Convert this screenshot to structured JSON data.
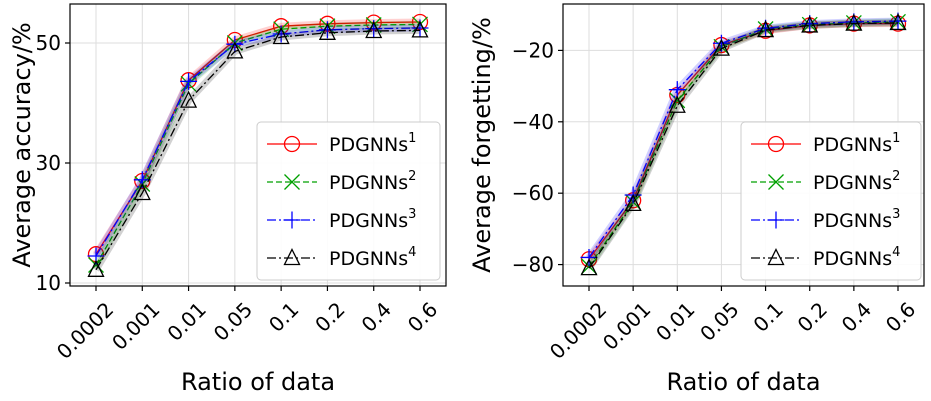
{
  "chart_data": [
    {
      "type": "line",
      "xlabel": "Ratio of data",
      "ylabel": "Average accuracy/%",
      "categories": [
        "0.0002",
        "0.001",
        "0.01",
        "0.05",
        "0.1",
        "0.2",
        "0.4",
        "0.6"
      ],
      "ylim": [
        9.5,
        56.5
      ],
      "yticks": [
        "10",
        "30",
        "50"
      ],
      "grid": true,
      "legend_position": "lower-right",
      "series": [
        {
          "name": "PDGNNs",
          "sup": "1",
          "color": "#ff0000",
          "dash": "solid",
          "marker": "circle",
          "values": [
            14.8,
            27.0,
            43.8,
            50.5,
            52.8,
            53.2,
            53.4,
            53.5
          ]
        },
        {
          "name": "PDGNNs",
          "sup": "2",
          "color": "#00a000",
          "dash": "dashed",
          "marker": "x",
          "values": [
            13.0,
            26.5,
            43.2,
            50.0,
            52.3,
            52.8,
            53.0,
            53.1
          ]
        },
        {
          "name": "PDGNNs",
          "sup": "3",
          "color": "#0000ff",
          "dash": "dashdot",
          "marker": "plus",
          "values": [
            14.5,
            27.2,
            43.6,
            49.8,
            51.5,
            52.2,
            52.4,
            52.5
          ]
        },
        {
          "name": "PDGNNs",
          "sup": "4",
          "color": "#000000",
          "dash": "dashdot",
          "marker": "triangle",
          "values": [
            12.2,
            25.0,
            40.4,
            48.6,
            51.0,
            51.7,
            52.0,
            52.1
          ]
        }
      ]
    },
    {
      "type": "line",
      "xlabel": "Ratio of data",
      "ylabel": "Average forgetting/%",
      "categories": [
        "0.0002",
        "0.001",
        "0.01",
        "0.05",
        "0.1",
        "0.2",
        "0.4",
        "0.6"
      ],
      "ylim": [
        -86,
        -7
      ],
      "yticks": [
        "-20",
        "-40",
        "-60",
        "-80"
      ],
      "grid": true,
      "legend_position": "lower-right",
      "series": [
        {
          "name": "PDGNNs",
          "sup": "1",
          "color": "#ff0000",
          "dash": "solid",
          "marker": "circle",
          "values": [
            -78.5,
            -62.0,
            -32.5,
            -18.5,
            -14.5,
            -13.0,
            -12.5,
            -12.5
          ]
        },
        {
          "name": "PDGNNs",
          "sup": "2",
          "color": "#00a000",
          "dash": "dashed",
          "marker": "x",
          "values": [
            -80.5,
            -62.5,
            -34.0,
            -19.0,
            -14.0,
            -12.8,
            -12.3,
            -12.0
          ]
        },
        {
          "name": "PDGNNs",
          "sup": "3",
          "color": "#0000ff",
          "dash": "dashdot",
          "marker": "plus",
          "values": [
            -78.0,
            -60.5,
            -31.0,
            -18.0,
            -13.8,
            -12.5,
            -12.0,
            -11.8
          ]
        },
        {
          "name": "PDGNNs",
          "sup": "4",
          "color": "#000000",
          "dash": "dashdot",
          "marker": "triangle",
          "values": [
            -81.0,
            -63.0,
            -35.5,
            -19.5,
            -14.3,
            -13.0,
            -12.5,
            -12.3
          ]
        }
      ]
    }
  ]
}
